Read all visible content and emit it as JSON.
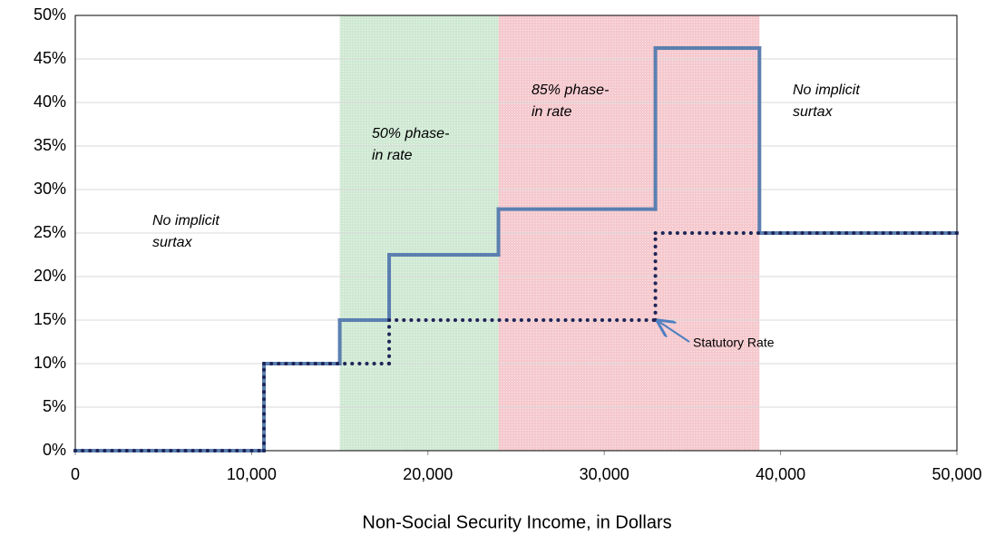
{
  "chart_data": {
    "type": "step",
    "x_label": "Non-Social Security Income, in Dollars",
    "xlim": [
      0,
      50000
    ],
    "xticks": [
      0,
      {
        "value": 10000,
        "label": "10,000"
      },
      {
        "value": 20000,
        "label": "20,000"
      },
      {
        "value": 30000,
        "label": "30,000"
      },
      {
        "value": 40000,
        "label": "40,000"
      },
      {
        "value": 50000,
        "label": "50,000"
      }
    ],
    "ylim": [
      0,
      50
    ],
    "yticks": [
      {
        "value": 0,
        "label": "0%"
      },
      {
        "value": 5,
        "label": "5%"
      },
      {
        "value": 10,
        "label": "10%"
      },
      {
        "value": 15,
        "label": "15%"
      },
      {
        "value": 20,
        "label": "20%"
      },
      {
        "value": 25,
        "label": "25%"
      },
      {
        "value": 30,
        "label": "30%"
      },
      {
        "value": 35,
        "label": "35%"
      },
      {
        "value": 40,
        "label": "40%"
      },
      {
        "value": 45,
        "label": "45%"
      },
      {
        "value": 50,
        "label": "50%"
      }
    ],
    "grid": true,
    "bands": [
      {
        "x": [
          15000,
          24000
        ],
        "color": "#cfe9d3",
        "label_lines": [
          "50% phase-",
          "in rate"
        ]
      },
      {
        "x": [
          24000,
          38800
        ],
        "color": "#f5c9ce",
        "label_lines": [
          "85% phase-",
          "in rate"
        ]
      }
    ],
    "series": [
      {
        "color": "#5b7fb0",
        "style": "solid",
        "x": [
          0,
          10700,
          15000,
          17800,
          24000,
          32900,
          38800
        ],
        "values": [
          0,
          10,
          15,
          22.5,
          27.75,
          46.25,
          25
        ]
      },
      {
        "color": "#1f2557",
        "style": "dotted",
        "x": [
          0,
          10700,
          17800,
          32900
        ],
        "values": [
          0,
          10,
          15,
          25
        ]
      }
    ],
    "annotations": [
      {
        "lines": [
          "No implicit",
          "surtax"
        ]
      },
      {
        "lines": [
          "No implicit",
          "surtax"
        ]
      },
      {
        "lines": [
          "Statutory Rate"
        ]
      }
    ]
  }
}
